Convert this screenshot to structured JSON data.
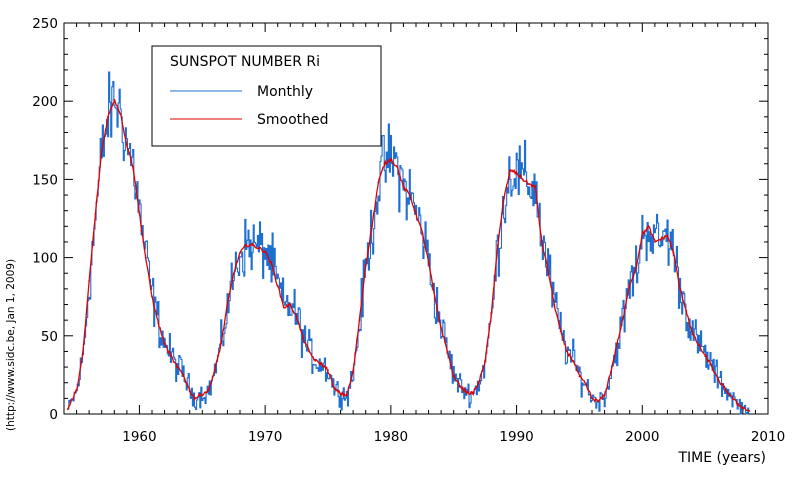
{
  "chart_data": {
    "type": "line",
    "title": "SUNSPOT NUMBER Ri",
    "xlabel": "TIME (years)",
    "ylabel": "",
    "credit": "(http://www.sidc.be, Jan  1, 2009)",
    "xlim": [
      1954,
      2010
    ],
    "ylim": [
      0,
      250
    ],
    "x_ticks": [
      1960,
      1970,
      1980,
      1990,
      2000,
      2010
    ],
    "y_ticks": [
      0,
      50,
      100,
      150,
      200,
      250
    ],
    "grid": false,
    "legend": [
      {
        "label": "Monthly",
        "color": "#1f6fd0"
      },
      {
        "label": "Smoothed",
        "color": "#e00000"
      }
    ],
    "series": [
      {
        "name": "Smoothed",
        "color": "#e00000",
        "x": [
          1954.3,
          1955.0,
          1955.5,
          1956.0,
          1956.5,
          1957.0,
          1957.5,
          1958.0,
          1958.5,
          1959.0,
          1959.5,
          1960.0,
          1960.5,
          1961.0,
          1961.5,
          1962.0,
          1962.5,
          1963.0,
          1963.5,
          1964.0,
          1964.4,
          1964.8,
          1965.5,
          1966.0,
          1966.5,
          1967.0,
          1967.5,
          1968.0,
          1968.5,
          1969.0,
          1969.5,
          1970.0,
          1970.5,
          1971.0,
          1971.5,
          1972.0,
          1972.5,
          1973.0,
          1973.5,
          1974.0,
          1974.5,
          1975.0,
          1975.5,
          1976.0,
          1976.5,
          1977.0,
          1977.5,
          1978.0,
          1978.5,
          1979.0,
          1979.5,
          1980.0,
          1980.5,
          1981.0,
          1981.5,
          1982.0,
          1982.5,
          1983.0,
          1983.5,
          1984.0,
          1984.5,
          1985.0,
          1985.5,
          1986.0,
          1986.5,
          1987.0,
          1987.5,
          1988.0,
          1988.5,
          1989.0,
          1989.5,
          1990.0,
          1990.5,
          1991.0,
          1991.5,
          1992.0,
          1992.5,
          1993.0,
          1993.5,
          1994.0,
          1994.5,
          1995.0,
          1995.5,
          1996.0,
          1996.5,
          1997.0,
          1997.5,
          1998.0,
          1998.5,
          1999.0,
          1999.5,
          2000.0,
          2000.5,
          2001.0,
          2001.5,
          2002.0,
          2002.5,
          2003.0,
          2003.5,
          2004.0,
          2004.5,
          2005.0,
          2005.5,
          2006.0,
          2006.5,
          2007.0,
          2007.5,
          2008.0,
          2008.5
        ],
        "y": [
          3,
          15,
          38,
          85,
          128,
          168,
          190,
          201,
          192,
          172,
          158,
          128,
          100,
          75,
          58,
          45,
          37,
          30,
          25,
          15,
          10,
          12,
          15,
          28,
          45,
          70,
          90,
          103,
          108,
          108,
          106,
          104,
          96,
          82,
          68,
          70,
          62,
          49,
          40,
          34,
          32,
          28,
          16,
          13,
          12,
          27,
          60,
          95,
          120,
          148,
          160,
          163,
          158,
          145,
          140,
          128,
          116,
          97,
          74,
          55,
          40,
          24,
          18,
          14,
          13,
          20,
          34,
          64,
          108,
          138,
          156,
          154,
          150,
          147,
          145,
          110,
          92,
          70,
          53,
          40,
          34,
          24,
          19,
          10,
          8,
          12,
          27,
          45,
          62,
          83,
          93,
          115,
          120,
          110,
          112,
          114,
          103,
          80,
          66,
          51,
          44,
          37,
          31,
          22,
          17,
          12,
          7,
          4,
          2
        ]
      }
    ]
  }
}
